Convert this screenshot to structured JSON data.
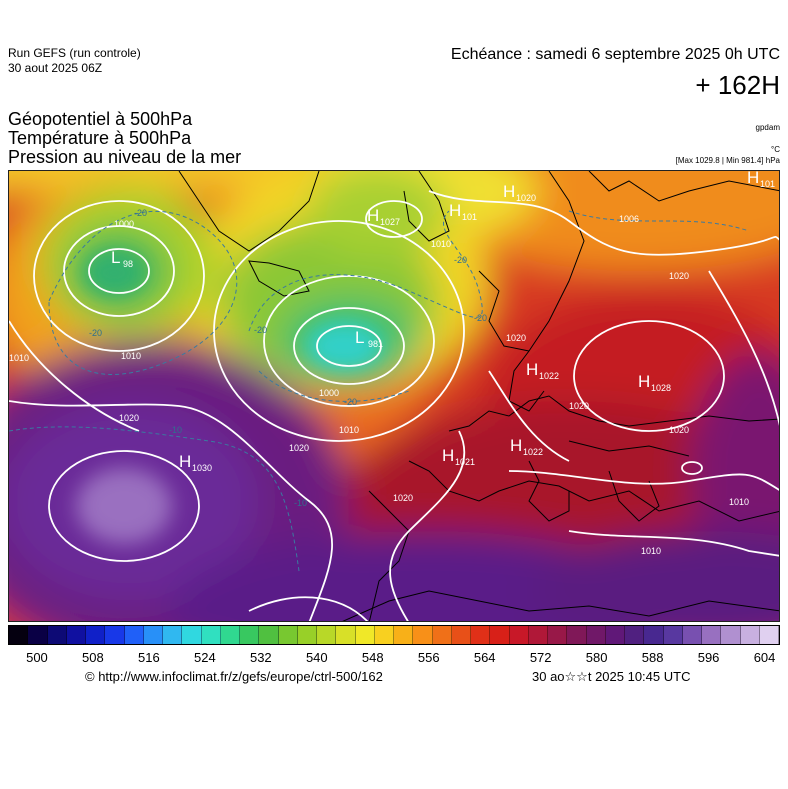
{
  "header": {
    "run_line1": "Run GEFS (run controle)",
    "run_line2": "30 aout 2025 06Z",
    "valid_time": "Echéance : samedi 6 septembre 2025 0h UTC",
    "lead_time": "+ 162H"
  },
  "parameters": {
    "line1": "Géopotentiel à 500hPa",
    "line2": "Température à 500hPa",
    "line3": "Pression au niveau de la mer"
  },
  "units": {
    "geopotential": "gpdam",
    "temperature": "°C",
    "pressure": "[Max 1029.8 | Min 981.4] hPa"
  },
  "map": {
    "pressure_centers": [
      {
        "type": "L",
        "value": "98"
      },
      {
        "type": "L",
        "value": "981"
      },
      {
        "type": "H",
        "value": "1027"
      },
      {
        "type": "H",
        "value": "101"
      },
      {
        "type": "H",
        "value": "1020"
      },
      {
        "type": "H",
        "value": "101"
      },
      {
        "type": "H",
        "value": "1022"
      },
      {
        "type": "H",
        "value": "1028"
      },
      {
        "type": "H",
        "value": "1021"
      },
      {
        "type": "H",
        "value": "1022"
      },
      {
        "type": "H",
        "value": "1030"
      }
    ],
    "isobar_labels": [
      "1000",
      "1010",
      "1020",
      "1000",
      "1010",
      "1020",
      "1010",
      "1020",
      "1020",
      "1020",
      "1010",
      "1010",
      "1020",
      "1006",
      "1020",
      "1010"
    ],
    "isotherm_labels": [
      "-20",
      "-20",
      "-20",
      "-20",
      "-20",
      "-20",
      "-10",
      "-10"
    ],
    "colors": {
      "ocean_low": "#e0503a",
      "high_dome": "#5a1d8e",
      "cold_core": "#32c8c8",
      "isobar": "#ffffff",
      "coastline": "#000000"
    }
  },
  "colorbar": {
    "ticks": [
      "500",
      "508",
      "516",
      "524",
      "532",
      "540",
      "548",
      "556",
      "564",
      "572",
      "580",
      "588",
      "596",
      "604"
    ],
    "colors": [
      "#050010",
      "#0a0045",
      "#0d0a75",
      "#1010a0",
      "#1020c8",
      "#1838e8",
      "#2060f8",
      "#2890f8",
      "#30b8f0",
      "#30d8e0",
      "#30e0c0",
      "#30d890",
      "#38c860",
      "#50c040",
      "#78c830",
      "#98d028",
      "#b8d828",
      "#d8e028",
      "#f0e828",
      "#f8d020",
      "#f8b018",
      "#f89018",
      "#f07018",
      "#e85018",
      "#e03018",
      "#d82018",
      "#c81828",
      "#b01838",
      "#981848",
      "#801858",
      "#701868",
      "#601878",
      "#502080",
      "#482890",
      "#5838a0",
      "#7850b0",
      "#9870c0",
      "#b090d0",
      "#c8b0e0",
      "#e0d0f0"
    ]
  },
  "footer": {
    "url": "© http://www.infoclimat.fr/z/gefs/europe/ctrl-500/162",
    "issued": "30 ao☆☆t 2025 10:45 UTC"
  }
}
